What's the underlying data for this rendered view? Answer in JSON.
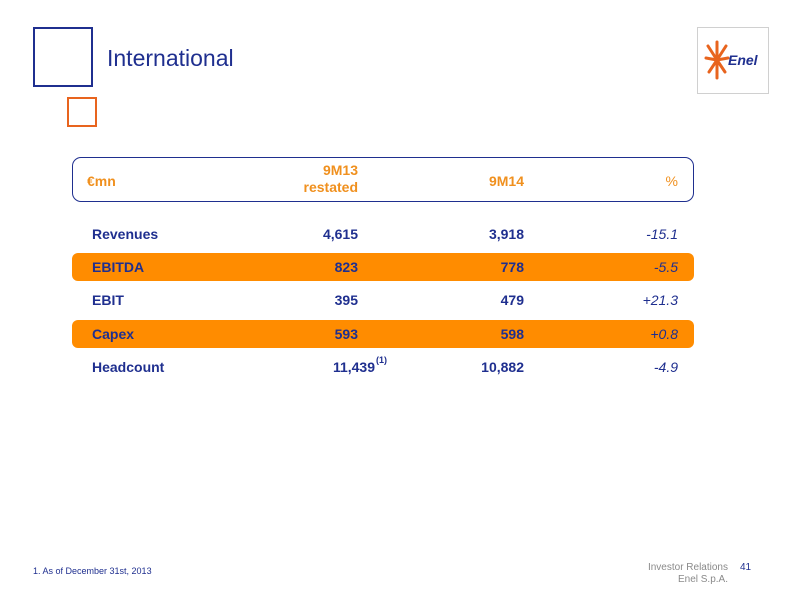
{
  "header": {
    "title": "International",
    "logo_text": "Enel"
  },
  "table": {
    "columns": {
      "unit": "€mn",
      "col1_line1": "9M13",
      "col1_line2": "restated",
      "col2": "9M14",
      "col3": "%"
    },
    "rows": [
      {
        "label": "Revenues",
        "v1": "4,615",
        "v1_note": "",
        "v2": "3,918",
        "pct": "-15.1",
        "highlight": false
      },
      {
        "label": "EBITDA",
        "v1": "823",
        "v1_note": "",
        "v2": "778",
        "pct": "-5.5",
        "highlight": true
      },
      {
        "label": "EBIT",
        "v1": "395",
        "v1_note": "",
        "v2": "479",
        "pct": "+21.3",
        "highlight": false
      },
      {
        "label": "Capex",
        "v1": "593",
        "v1_note": "",
        "v2": "598",
        "pct": "+0.8",
        "highlight": true
      },
      {
        "label": "Headcount",
        "v1": "11,439",
        "v1_note": "(1)",
        "v2": "10,882",
        "pct": "-4.9",
        "highlight": false
      }
    ]
  },
  "footer": {
    "footnote": "1. As of December 31st, 2013",
    "org_line1": "Investor Relations",
    "org_line2": "Enel S.p.A.",
    "page_number": "41"
  },
  "colors": {
    "brand_blue": "#1f2f8f",
    "accent_orange": "#ff8c00",
    "header_orange": "#f0901e"
  }
}
